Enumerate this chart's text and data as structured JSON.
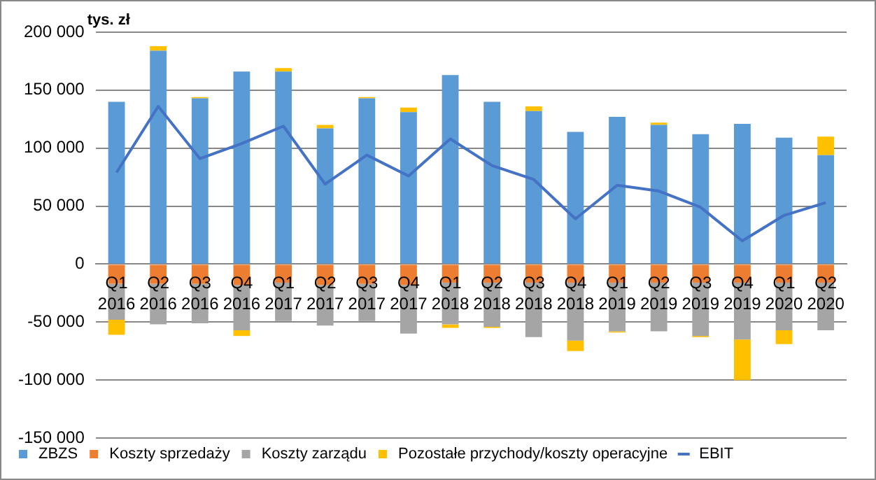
{
  "chart_data": {
    "type": "bar",
    "stacked": true,
    "ylabel": "tys. zł",
    "categories": [
      "Q1 2016",
      "Q2 2016",
      "Q3 2016",
      "Q4 2016",
      "Q1 2017",
      "Q2 2017",
      "Q3 2017",
      "Q4 2017",
      "Q1 2018",
      "Q2 2018",
      "Q3 2018",
      "Q4 2018",
      "Q1 2019",
      "Q2 2019",
      "Q3 2019",
      "Q4 2019",
      "Q1 2020",
      "Q2 2020"
    ],
    "series": [
      {
        "name": "ZBZS",
        "color": "#5b9bd5",
        "values": [
          140000,
          184000,
          143000,
          166000,
          166000,
          117000,
          143000,
          131000,
          163000,
          140000,
          132000,
          114000,
          127000,
          120000,
          112000,
          121000,
          109000,
          94000
        ]
      },
      {
        "name": "Koszty sprzedaży",
        "color": "#ed7d31",
        "values": [
          -17000,
          -17000,
          -17000,
          -18000,
          -16000,
          -18000,
          -17000,
          -18000,
          -16000,
          -16000,
          -16000,
          -16000,
          -16000,
          -16000,
          -16000,
          -16000,
          -16000,
          -16000
        ]
      },
      {
        "name": "Koszty zarządu",
        "color": "#a5a5a5",
        "values": [
          -31000,
          -35000,
          -34000,
          -39000,
          -33000,
          -35000,
          -32000,
          -42000,
          -36000,
          -38000,
          -47000,
          -50000,
          -42000,
          -42000,
          -46000,
          -49000,
          -41000,
          -41000
        ]
      },
      {
        "name": "Pozostałe przychody/koszty operacyjne",
        "color": "#ffc000",
        "values": [
          -13000,
          4000,
          1000,
          -5000,
          3000,
          3000,
          1000,
          4000,
          -3000,
          -1000,
          4000,
          -9000,
          -1000,
          2000,
          -1000,
          -35000,
          -12000,
          16000
        ]
      },
      {
        "name": "EBIT",
        "type": "line",
        "color": "#4472c4",
        "marker": "none",
        "values": [
          79000,
          136000,
          91000,
          104000,
          119000,
          69000,
          94000,
          76000,
          108000,
          85000,
          73000,
          39000,
          68000,
          63000,
          49000,
          20000,
          42000,
          53000
        ]
      }
    ],
    "ylim": [
      -150000,
      200000
    ],
    "yticks": [
      {
        "value": -150000,
        "label": "-150 000"
      },
      {
        "value": -100000,
        "label": "-100 000"
      },
      {
        "value": -50000,
        "label": "-50 000"
      },
      {
        "value": 0,
        "label": "0"
      },
      {
        "value": 50000,
        "label": "50 000"
      },
      {
        "value": 100000,
        "label": "100 000"
      },
      {
        "value": 150000,
        "label": "150 000"
      },
      {
        "value": 200000,
        "label": "200 000"
      }
    ],
    "grid": "y",
    "legend": "bottom"
  }
}
